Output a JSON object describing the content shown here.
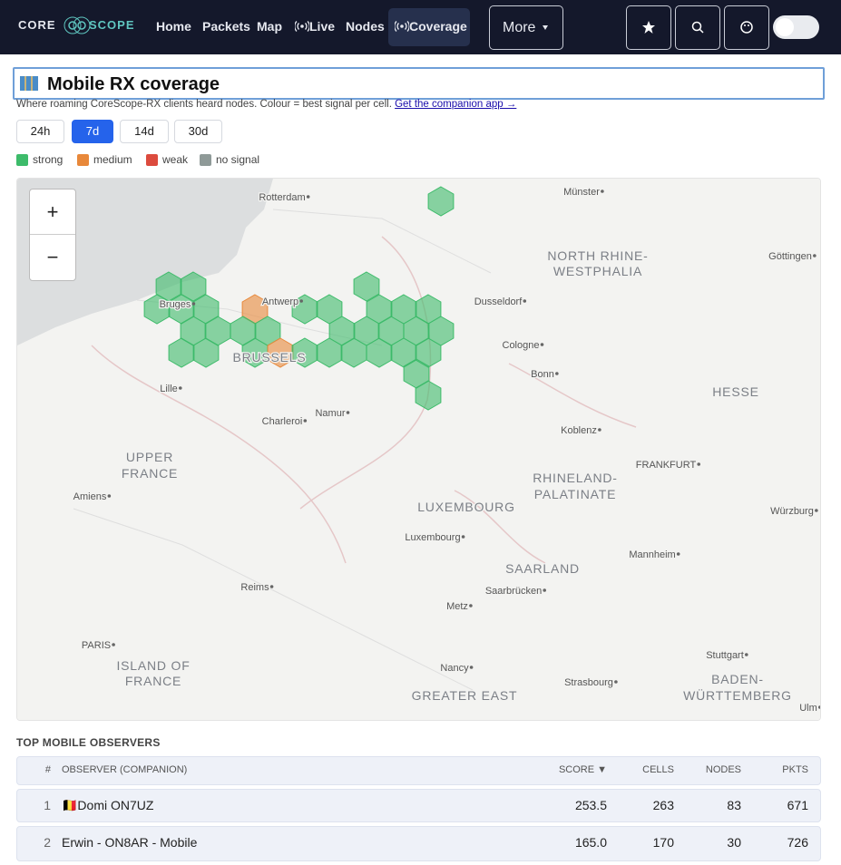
{
  "nav": {
    "logo_left": "CORE",
    "logo_right": "SCOPE",
    "items": [
      "Home",
      "Packets",
      "Map",
      "Live",
      "Nodes",
      "Coverage"
    ],
    "active": "Coverage",
    "more": "More"
  },
  "page": {
    "title": "Mobile RX coverage",
    "subtitle": "Where roaming CoreScope-RX clients heard nodes. Colour = best signal per cell.",
    "link": "Get the companion app →",
    "ranges": [
      "24h",
      "7d",
      "14d",
      "30d"
    ],
    "active_range": "7d",
    "legend": [
      {
        "label": "strong",
        "color": "#3dbb6a"
      },
      {
        "label": "medium",
        "color": "#e8883a"
      },
      {
        "label": "weak",
        "color": "#dc4b3e"
      },
      {
        "label": "no signal",
        "color": "#8f9a98"
      }
    ]
  },
  "map": {
    "zoom_in": "+",
    "zoom_out": "−",
    "labels": [
      "Rotterdam",
      "Münster",
      "NORTH RHINE-",
      "WESTPHALIA",
      "Göttingen",
      "Antwerp",
      "Bruges",
      "Dusseldorf",
      "BRUSSELS",
      "Cologne",
      "Bonn",
      "HESSE",
      "Lille",
      "Namur",
      "Charleroi",
      "Koblenz",
      "UPPER",
      "FRANCE",
      "FRANKFURT",
      "RHINELAND-",
      "PALATINATE",
      "Amiens",
      "LUXEMBOURG",
      "Würzburg",
      "Luxembourg",
      "Mannheim",
      "SAARLAND",
      "Reims",
      "Saarbrücken",
      "Metz",
      "PARIS",
      "ISLAND OF",
      "FRANCE",
      "Stuttgart",
      "Nancy",
      "BADEN-",
      "WÜRTTEMBERG",
      "Strasbourg",
      "GREATER EAST",
      "Ulm"
    ]
  },
  "table": {
    "heading": "TOP MOBILE OBSERVERS",
    "columns": [
      "#",
      "OBSERVER (COMPANION)",
      "SCORE ▼",
      "CELLS",
      "NODES",
      "PKTS"
    ],
    "rows": [
      [
        "1",
        "🇧🇪Domi ON7UZ",
        "253.5",
        "263",
        "83",
        "671"
      ],
      [
        "2",
        "Erwin - ON8AR - Mobile",
        "165.0",
        "170",
        "30",
        "726"
      ]
    ]
  }
}
